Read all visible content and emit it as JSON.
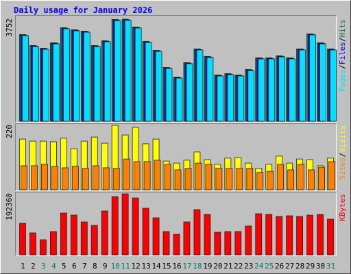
{
  "chart_data": [
    {
      "type": "bar",
      "title": "Daily usage for January 2026",
      "legend_separator": "/",
      "series": [
        {
          "name": "Hits",
          "color": "#00805c",
          "values": [
            3188,
            2785,
            2684,
            2885,
            3439,
            3364,
            3313,
            2785,
            2961,
            3742,
            3752,
            3465,
            2936,
            2608,
            1979,
            1626,
            2155,
            2659,
            2382,
            1702,
            1752,
            1702,
            1903,
            2332,
            2332,
            2407,
            2332,
            2659,
            3213,
            2885,
            2659
          ]
        },
        {
          "name": "Files",
          "color": "#0000ff",
          "values": [
            3168,
            2765,
            2664,
            2865,
            3419,
            3344,
            3293,
            2765,
            2941,
            3722,
            3732,
            3445,
            2916,
            2588,
            1959,
            1606,
            2135,
            2639,
            2362,
            1682,
            1732,
            1682,
            1883,
            2312,
            2312,
            2387,
            2312,
            2639,
            3193,
            2865,
            2639
          ]
        },
        {
          "name": "Pages",
          "color": "#00e0ff",
          "values": [
            3148,
            2745,
            2644,
            2845,
            3399,
            3324,
            3273,
            2745,
            2921,
            3702,
            3712,
            3425,
            2896,
            2568,
            1939,
            1586,
            2115,
            2619,
            2342,
            1662,
            1712,
            1662,
            1863,
            2292,
            2292,
            2367,
            2292,
            2619,
            3173,
            2845,
            2619
          ]
        }
      ],
      "ylim": [
        0,
        3752
      ],
      "yticks": [
        3752
      ]
    },
    {
      "type": "bar",
      "legend_separator": "/",
      "series": [
        {
          "name": "Visits",
          "color": "#ffff00",
          "values": [
            173,
            166,
            166,
            164,
            176,
            140,
            166,
            180,
            159,
            220,
            187,
            213,
            157,
            173,
            98,
            91,
            101,
            129,
            103,
            87,
            108,
            110,
            91,
            73,
            87,
            115,
            91,
            105,
            103,
            82,
            108
          ]
        },
        {
          "name": "Sites",
          "color": "#ff8000",
          "values": [
            82,
            82,
            87,
            80,
            75,
            80,
            73,
            82,
            75,
            73,
            105,
            96,
            96,
            101,
            87,
            68,
            73,
            91,
            87,
            73,
            73,
            73,
            73,
            59,
            63,
            87,
            68,
            87,
            68,
            77,
            96
          ]
        }
      ],
      "ylim": [
        0,
        220
      ],
      "yticks": [
        220
      ]
    },
    {
      "type": "bar",
      "series": [
        {
          "name": "KBytes",
          "color": "#ff0000",
          "values": [
            99421,
            69163,
            47550,
            73486,
            131842,
            125358,
            103745,
            92937,
            138326,
            183715,
            192360,
            179392,
            146971,
            116713,
            73486,
            64841,
            103745,
            142649,
            127520,
            71325,
            73486,
            73486,
            90777,
            129681,
            127520,
            121036,
            123197,
            121036,
            125358,
            127520,
            112389
          ]
        }
      ],
      "ylim": [
        0,
        192360
      ],
      "yticks": [
        192360
      ],
      "categories": [
        "1",
        "2",
        "3",
        "4",
        "5",
        "6",
        "7",
        "8",
        "9",
        "10",
        "11",
        "12",
        "13",
        "14",
        "15",
        "16",
        "17",
        "18",
        "19",
        "20",
        "21",
        "22",
        "23",
        "24",
        "25",
        "26",
        "27",
        "28",
        "29",
        "30",
        "31"
      ],
      "category_colors": [
        "#000000",
        "#000000",
        "#00805c",
        "#00805c",
        "#000000",
        "#000000",
        "#000000",
        "#000000",
        "#000000",
        "#00805c",
        "#00805c",
        "#000000",
        "#000000",
        "#000000",
        "#000000",
        "#000000",
        "#00805c",
        "#00805c",
        "#000000",
        "#000000",
        "#000000",
        "#000000",
        "#000000",
        "#00805c",
        "#00805c",
        "#000000",
        "#000000",
        "#000000",
        "#000000",
        "#000000",
        "#00805c"
      ]
    }
  ]
}
